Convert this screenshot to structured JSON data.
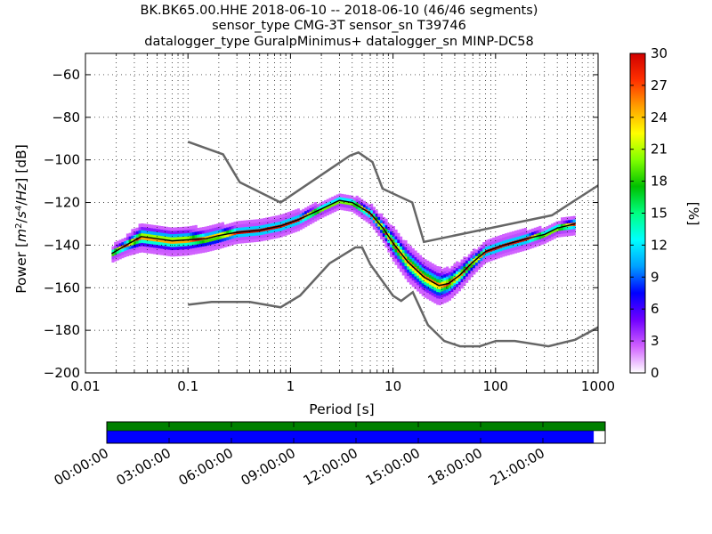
{
  "chart_data": {
    "type": "heatmap",
    "title_lines": [
      "BK.BK65.00.HHE   2018-06-10 -- 2018-06-10  (46/46 segments)",
      "sensor_type CMG-3T sensor_sn T39746",
      "datalogger_type GuralpMinimus+ datalogger_sn MINP-DC58"
    ],
    "xlabel": "Period [s]",
    "ylabel_parts": [
      "Power [",
      "m",
      "2",
      "/",
      "s",
      "4",
      "/",
      "Hz",
      "] [dB]"
    ],
    "xscale": "log",
    "xlim": [
      0.01,
      1000
    ],
    "ylim": [
      -200,
      -50
    ],
    "x_ticks": [
      {
        "value": 0.01,
        "label": "0.01"
      },
      {
        "value": 0.1,
        "label": "0.1"
      },
      {
        "value": 1,
        "label": "1"
      },
      {
        "value": 10,
        "label": "10"
      },
      {
        "value": 100,
        "label": "100"
      },
      {
        "value": 1000,
        "label": "1000"
      }
    ],
    "y_ticks": [
      {
        "value": -60,
        "label": "−60"
      },
      {
        "value": -80,
        "label": "−80"
      },
      {
        "value": -100,
        "label": "−100"
      },
      {
        "value": -120,
        "label": "−120"
      },
      {
        "value": -140,
        "label": "−140"
      },
      {
        "value": -160,
        "label": "−160"
      },
      {
        "value": -180,
        "label": "−180"
      },
      {
        "value": -200,
        "label": "−200"
      }
    ],
    "grid": true,
    "colorbar": {
      "label": "[%]",
      "range": [
        0,
        30
      ],
      "ticks": [
        {
          "value": 0,
          "label": "0"
        },
        {
          "value": 3,
          "label": "3"
        },
        {
          "value": 6,
          "label": "6"
        },
        {
          "value": 9,
          "label": "9"
        },
        {
          "value": 12,
          "label": "12"
        },
        {
          "value": 15,
          "label": "15"
        },
        {
          "value": 18,
          "label": "18"
        },
        {
          "value": 21,
          "label": "21"
        },
        {
          "value": 24,
          "label": "24"
        },
        {
          "value": 27,
          "label": "27"
        },
        {
          "value": 30,
          "label": "30"
        }
      ],
      "colormap": [
        "#ffffff",
        "#d060ff",
        "#7000ff",
        "#0000ff",
        "#00a0ff",
        "#00ffff",
        "#00ff80",
        "#00c000",
        "#80ff00",
        "#ffff00",
        "#ffa000",
        "#ff3000",
        "#d00000"
      ]
    },
    "nhnm": {
      "name": "NHNM",
      "color": "#666666",
      "x": [
        0.1,
        0.22,
        0.32,
        0.8,
        3.8,
        4.6,
        6.3,
        7.9,
        15.4,
        20,
        354.8,
        1000
      ],
      "y": [
        -91.5,
        -97.4,
        -110.5,
        -120,
        -98,
        -96.5,
        -101,
        -113.5,
        -120,
        -138.5,
        -126,
        -112
      ]
    },
    "nlnm": {
      "name": "NLNM",
      "color": "#666666",
      "x": [
        0.1,
        0.17,
        0.4,
        0.8,
        1.24,
        2.4,
        4.3,
        5,
        6,
        10,
        12,
        15.6,
        21.9,
        31.6,
        45,
        70,
        101,
        154,
        328,
        600,
        1000
      ],
      "y": [
        -168,
        -166.7,
        -166.7,
        -169.2,
        -163.7,
        -148.6,
        -141.1,
        -141.1,
        -149,
        -163.8,
        -166.2,
        -162.1,
        -177.5,
        -185,
        -187.5,
        -187.5,
        -185,
        -185,
        -187.5,
        -184.4,
        -178.6
      ]
    },
    "mode_curve": {
      "name": "mode",
      "color": "#000000",
      "x": [
        0.018,
        0.025,
        0.035,
        0.05,
        0.07,
        0.1,
        0.15,
        0.2,
        0.3,
        0.5,
        0.8,
        1.2,
        2,
        3,
        4,
        6,
        8,
        10,
        14,
        20,
        28,
        35,
        45,
        60,
        80,
        120,
        200,
        300,
        400,
        600
      ],
      "y": [
        -144,
        -140,
        -136,
        -137,
        -138,
        -137.5,
        -137,
        -135.5,
        -134,
        -133,
        -131,
        -128,
        -123,
        -119,
        -120,
        -125,
        -132,
        -139,
        -148,
        -155,
        -159,
        -158,
        -154,
        -148,
        -143,
        -140,
        -137,
        -135,
        -132,
        -130
      ]
    },
    "spread": {
      "x": [
        0.018,
        0.025,
        0.035,
        0.05,
        0.07,
        0.1,
        0.15,
        0.2,
        0.3,
        0.5,
        0.8,
        1.2,
        2,
        3,
        4,
        6,
        8,
        10,
        14,
        20,
        28,
        35,
        45,
        60,
        80,
        120,
        200,
        300,
        400,
        600
      ],
      "half_width_db": [
        2,
        3,
        5,
        5,
        5,
        5,
        4,
        4,
        3,
        3,
        3,
        3,
        2,
        2,
        2,
        3,
        4,
        6,
        7,
        7,
        7,
        6,
        5,
        4,
        3,
        3,
        3,
        2,
        2,
        3
      ]
    }
  },
  "segments_bar": {
    "top_color": "#008000",
    "bottom_color": "#0000ff",
    "coverage_fraction": 0.977,
    "time_labels": [
      "00:00:00",
      "03:00:00",
      "06:00:00",
      "09:00:00",
      "12:00:00",
      "15:00:00",
      "18:00:00",
      "21:00:00"
    ]
  }
}
